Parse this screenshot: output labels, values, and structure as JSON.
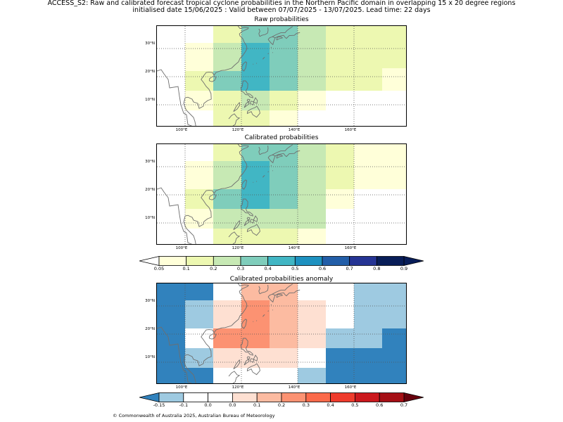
{
  "title": {
    "line1": "ACCESS_S2: Raw and calibrated forecast tropical cyclone probabilities in the Northern Pacific domain in overlapping 15 x 20 degree regions",
    "line2": "initialised date 15/06/2025 :  Valid between 07/07/2025 - 13/07/2025. Lead time: 22 days"
  },
  "axes": {
    "lat_labels": [
      "30°N",
      "20°N",
      "10°N"
    ],
    "lat_values": [
      30,
      20,
      10
    ],
    "lon_labels": [
      "100°E",
      "120°E",
      "140°E",
      "160°E"
    ],
    "lon_values": [
      100,
      120,
      140,
      160
    ],
    "extent": {
      "lon_min": 90,
      "lon_max": 179,
      "lat_min": 2,
      "lat_max": 38
    }
  },
  "colorbars": {
    "probability": {
      "bounds": [
        0.05,
        0.1,
        0.2,
        0.3,
        0.4,
        0.5,
        0.6,
        0.7,
        0.8,
        0.9
      ],
      "labels": [
        "0.05",
        "0.1",
        "0.2",
        "0.3",
        "0.4",
        "0.5",
        "0.6",
        "0.7",
        "0.8",
        "0.9"
      ],
      "colors": [
        "#ffffd9",
        "#edf8b1",
        "#c7e9b4",
        "#7fcdbb",
        "#41b6c4",
        "#1d91c0",
        "#225ea8",
        "#253494",
        "#081d58"
      ],
      "under": "#ffffff",
      "over": "#081d58"
    },
    "anomaly": {
      "bounds": [
        -0.15,
        -0.1,
        0.0,
        0.0,
        0.1,
        0.2,
        0.3,
        0.4,
        0.5,
        0.6,
        0.7
      ],
      "labels": [
        "-0.15",
        "-0.1",
        "0.0",
        "0.0",
        "0.1",
        "0.2",
        "0.3",
        "0.4",
        "0.5",
        "0.6",
        "0.7"
      ],
      "colors": [
        "#9ecae1",
        "#ffffff",
        "#ffffff",
        "#fee0d2",
        "#fcbba1",
        "#fc9272",
        "#fb6a4a",
        "#ef3b2c",
        "#cb181d",
        "#a50f15"
      ],
      "under": "#3182bd",
      "over": "#67000d"
    }
  },
  "panels": [
    {
      "id": "raw",
      "title": "Raw probabilities",
      "scale": "probability",
      "cells": [
        {
          "lon0": 90,
          "lon1": 100,
          "lat0": 2,
          "lat1": 38,
          "value": 0.0
        },
        {
          "lon0": 100,
          "lon1": 110,
          "lat0": 32,
          "lat1": 38,
          "value": 0.0
        },
        {
          "lon0": 100,
          "lon1": 110,
          "lat0": 22,
          "lat1": 32,
          "value": 0.07
        },
        {
          "lon0": 100,
          "lon1": 110,
          "lat0": 15,
          "lat1": 22,
          "value": 0.12
        },
        {
          "lon0": 100,
          "lon1": 110,
          "lat0": 8,
          "lat1": 15,
          "value": 0.07
        },
        {
          "lon0": 100,
          "lon1": 110,
          "lat0": 2,
          "lat1": 8,
          "value": 0.0
        },
        {
          "lon0": 110,
          "lon1": 120,
          "lat0": 32,
          "lat1": 38,
          "value": 0.12
        },
        {
          "lon0": 110,
          "lon1": 120,
          "lat0": 22,
          "lat1": 32,
          "value": 0.22
        },
        {
          "lon0": 110,
          "lon1": 120,
          "lat0": 15,
          "lat1": 22,
          "value": 0.32
        },
        {
          "lon0": 110,
          "lon1": 120,
          "lat0": 2,
          "lat1": 15,
          "value": 0.12
        },
        {
          "lon0": 120,
          "lon1": 130,
          "lat0": 32,
          "lat1": 38,
          "value": 0.32
        },
        {
          "lon0": 120,
          "lon1": 130,
          "lat0": 15,
          "lat1": 32,
          "value": 0.42
        },
        {
          "lon0": 120,
          "lon1": 130,
          "lat0": 8,
          "lat1": 15,
          "value": 0.22
        },
        {
          "lon0": 120,
          "lon1": 130,
          "lat0": 2,
          "lat1": 8,
          "value": 0.12
        },
        {
          "lon0": 130,
          "lon1": 140,
          "lat0": 15,
          "lat1": 38,
          "value": 0.32
        },
        {
          "lon0": 130,
          "lon1": 140,
          "lat0": 8,
          "lat1": 15,
          "value": 0.12
        },
        {
          "lon0": 130,
          "lon1": 140,
          "lat0": 2,
          "lat1": 8,
          "value": 0.07
        },
        {
          "lon0": 140,
          "lon1": 150,
          "lat0": 15,
          "lat1": 38,
          "value": 0.22
        },
        {
          "lon0": 140,
          "lon1": 150,
          "lat0": 8,
          "lat1": 15,
          "value": 0.07
        },
        {
          "lon0": 140,
          "lon1": 150,
          "lat0": 2,
          "lat1": 8,
          "value": 0.0
        },
        {
          "lon0": 150,
          "lon1": 170,
          "lat0": 15,
          "lat1": 38,
          "value": 0.12
        },
        {
          "lon0": 150,
          "lon1": 179,
          "lat0": 2,
          "lat1": 15,
          "value": 0.0
        },
        {
          "lon0": 170,
          "lon1": 179,
          "lat0": 23,
          "lat1": 38,
          "value": 0.12
        },
        {
          "lon0": 170,
          "lon1": 179,
          "lat0": 15,
          "lat1": 23,
          "value": 0.07
        }
      ]
    },
    {
      "id": "calibrated",
      "title": "Calibrated probabilities",
      "scale": "probability",
      "cells": [
        {
          "lon0": 90,
          "lon1": 100,
          "lat0": 2,
          "lat1": 38,
          "value": 0.0
        },
        {
          "lon0": 100,
          "lon1": 110,
          "lat0": 32,
          "lat1": 38,
          "value": 0.0
        },
        {
          "lon0": 100,
          "lon1": 110,
          "lat0": 22,
          "lat1": 32,
          "value": 0.07
        },
        {
          "lon0": 100,
          "lon1": 110,
          "lat0": 15,
          "lat1": 22,
          "value": 0.12
        },
        {
          "lon0": 100,
          "lon1": 110,
          "lat0": 8,
          "lat1": 15,
          "value": 0.07
        },
        {
          "lon0": 100,
          "lon1": 110,
          "lat0": 2,
          "lat1": 8,
          "value": 0.0
        },
        {
          "lon0": 110,
          "lon1": 120,
          "lat0": 32,
          "lat1": 38,
          "value": 0.12
        },
        {
          "lon0": 110,
          "lon1": 120,
          "lat0": 22,
          "lat1": 32,
          "value": 0.22
        },
        {
          "lon0": 110,
          "lon1": 120,
          "lat0": 15,
          "lat1": 22,
          "value": 0.32
        },
        {
          "lon0": 110,
          "lon1": 120,
          "lat0": 8,
          "lat1": 15,
          "value": 0.22
        },
        {
          "lon0": 110,
          "lon1": 120,
          "lat0": 2,
          "lat1": 8,
          "value": 0.12
        },
        {
          "lon0": 120,
          "lon1": 130,
          "lat0": 32,
          "lat1": 38,
          "value": 0.32
        },
        {
          "lon0": 120,
          "lon1": 130,
          "lat0": 15,
          "lat1": 32,
          "value": 0.42
        },
        {
          "lon0": 120,
          "lon1": 130,
          "lat0": 8,
          "lat1": 15,
          "value": 0.22
        },
        {
          "lon0": 120,
          "lon1": 130,
          "lat0": 2,
          "lat1": 8,
          "value": 0.12
        },
        {
          "lon0": 130,
          "lon1": 140,
          "lat0": 15,
          "lat1": 38,
          "value": 0.32
        },
        {
          "lon0": 130,
          "lon1": 140,
          "lat0": 8,
          "lat1": 15,
          "value": 0.22
        },
        {
          "lon0": 130,
          "lon1": 140,
          "lat0": 2,
          "lat1": 8,
          "value": 0.12
        },
        {
          "lon0": 140,
          "lon1": 150,
          "lat0": 15,
          "lat1": 38,
          "value": 0.22
        },
        {
          "lon0": 140,
          "lon1": 150,
          "lat0": 8,
          "lat1": 15,
          "value": 0.22
        },
        {
          "lon0": 140,
          "lon1": 150,
          "lat0": 2,
          "lat1": 8,
          "value": 0.07
        },
        {
          "lon0": 150,
          "lon1": 160,
          "lat0": 22,
          "lat1": 38,
          "value": 0.12
        },
        {
          "lon0": 150,
          "lon1": 160,
          "lat0": 15,
          "lat1": 22,
          "value": 0.07
        },
        {
          "lon0": 150,
          "lon1": 179,
          "lat0": 2,
          "lat1": 15,
          "value": 0.0
        },
        {
          "lon0": 160,
          "lon1": 179,
          "lat0": 22,
          "lat1": 38,
          "value": 0.07
        },
        {
          "lon0": 160,
          "lon1": 179,
          "lat0": 15,
          "lat1": 22,
          "value": 0.0
        }
      ]
    },
    {
      "id": "anomaly",
      "title": "Calibrated probabilities anomaly",
      "scale": "anomaly",
      "cells": [
        {
          "lon0": 90,
          "lon1": 100,
          "lat0": 2,
          "lat1": 38,
          "value": -0.2
        },
        {
          "lon0": 100,
          "lon1": 110,
          "lat0": 32,
          "lat1": 38,
          "value": -0.2
        },
        {
          "lon0": 100,
          "lon1": 110,
          "lat0": 22,
          "lat1": 32,
          "value": -0.12
        },
        {
          "lon0": 100,
          "lon1": 110,
          "lat0": 15,
          "lat1": 22,
          "value": -0.05
        },
        {
          "lon0": 100,
          "lon1": 110,
          "lat0": 8,
          "lat1": 15,
          "value": -0.12
        },
        {
          "lon0": 100,
          "lon1": 110,
          "lat0": 2,
          "lat1": 8,
          "value": -0.2
        },
        {
          "lon0": 110,
          "lon1": 120,
          "lat0": 32,
          "lat1": 38,
          "value": -0.05
        },
        {
          "lon0": 110,
          "lon1": 120,
          "lat0": 22,
          "lat1": 32,
          "value": 0.05
        },
        {
          "lon0": 110,
          "lon1": 120,
          "lat0": 15,
          "lat1": 22,
          "value": 0.25
        },
        {
          "lon0": 110,
          "lon1": 120,
          "lat0": 8,
          "lat1": 15,
          "value": 0.05
        },
        {
          "lon0": 110,
          "lon1": 120,
          "lat0": 2,
          "lat1": 8,
          "value": -0.05
        },
        {
          "lon0": 120,
          "lon1": 130,
          "lat0": 32,
          "lat1": 38,
          "value": 0.15
        },
        {
          "lon0": 120,
          "lon1": 130,
          "lat0": 15,
          "lat1": 32,
          "value": 0.25
        },
        {
          "lon0": 120,
          "lon1": 130,
          "lat0": 8,
          "lat1": 15,
          "value": 0.05
        },
        {
          "lon0": 120,
          "lon1": 130,
          "lat0": 2,
          "lat1": 8,
          "value": -0.05
        },
        {
          "lon0": 130,
          "lon1": 140,
          "lat0": 15,
          "lat1": 38,
          "value": 0.15
        },
        {
          "lon0": 130,
          "lon1": 140,
          "lat0": 8,
          "lat1": 15,
          "value": 0.05
        },
        {
          "lon0": 130,
          "lon1": 140,
          "lat0": 2,
          "lat1": 8,
          "value": -0.05
        },
        {
          "lon0": 140,
          "lon1": 150,
          "lat0": 15,
          "lat1": 32,
          "value": 0.05
        },
        {
          "lon0": 140,
          "lon1": 150,
          "lat0": 32,
          "lat1": 38,
          "value": -0.05
        },
        {
          "lon0": 140,
          "lon1": 150,
          "lat0": 8,
          "lat1": 15,
          "value": -0.05
        },
        {
          "lon0": 140,
          "lon1": 150,
          "lat0": 2,
          "lat1": 8,
          "value": -0.12
        },
        {
          "lon0": 150,
          "lon1": 160,
          "lat0": 22,
          "lat1": 38,
          "value": -0.05
        },
        {
          "lon0": 150,
          "lon1": 170,
          "lat0": 15,
          "lat1": 22,
          "value": -0.12
        },
        {
          "lon0": 150,
          "lon1": 179,
          "lat0": 2,
          "lat1": 15,
          "value": -0.2
        },
        {
          "lon0": 160,
          "lon1": 179,
          "lat0": 22,
          "lat1": 38,
          "value": -0.12
        },
        {
          "lon0": 170,
          "lon1": 179,
          "lat0": 15,
          "lat1": 22,
          "value": -0.2
        }
      ]
    }
  ],
  "copyright": "© Commonwealth of Australia 2025, Australian Bureau of Meteorology"
}
